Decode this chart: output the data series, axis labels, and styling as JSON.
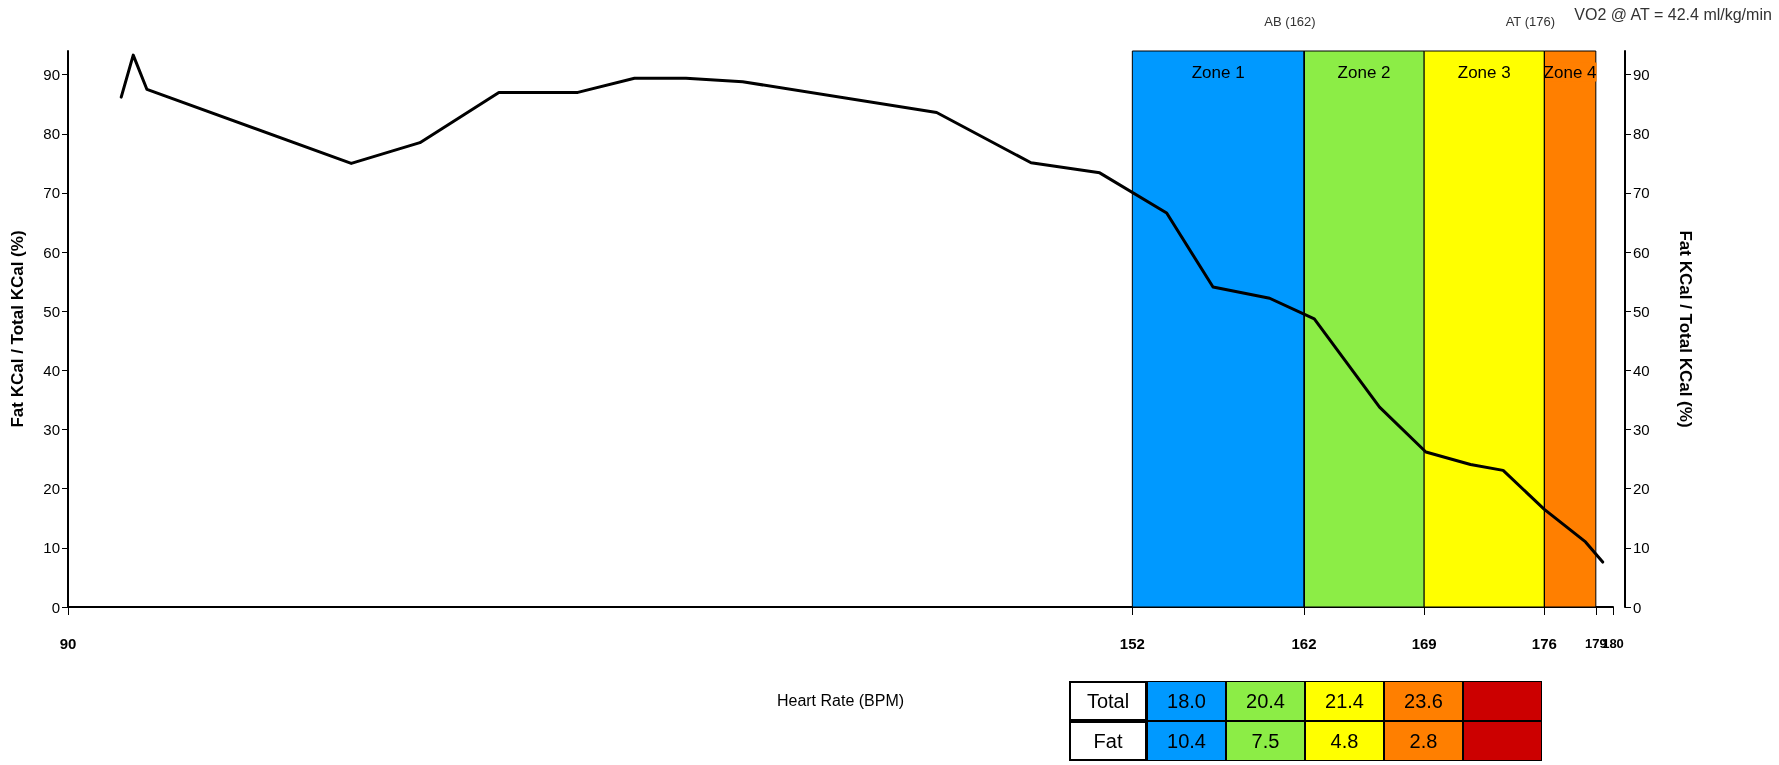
{
  "chart_data": {
    "type": "line",
    "xlabel": "Heart Rate (BPM)",
    "ylabel": "Fat KCal / Total KCal (%)",
    "y2label": "Fat KCal / Total KCal (%)",
    "x": [
      93.1,
      93.8,
      94.6,
      106.5,
      110.5,
      115.1,
      119.7,
      123,
      126,
      129.3,
      140.6,
      146.1,
      150.1,
      154,
      156.7,
      160,
      162.6,
      166.4,
      169.1,
      171.7,
      173.6,
      176,
      178.4,
      179.4
    ],
    "series": [
      {
        "color": "#000000",
        "values": [
          86.2,
          93.3,
          87.5,
          75,
          78.5,
          87,
          87,
          89.4,
          89.4,
          88.8,
          83.6,
          75.1,
          73.4,
          66.6,
          54.1,
          52.2,
          48.7,
          33.8,
          26.2,
          24.1,
          23.1,
          16.5,
          11,
          7.6
        ]
      }
    ],
    "xlim": [
      90,
      180
    ],
    "xticks": [
      90,
      152,
      162,
      169,
      176,
      179,
      180
    ],
    "ylim": [
      0,
      94
    ],
    "yticks": [
      0,
      10,
      20,
      30,
      40,
      50,
      60,
      70,
      80,
      90
    ],
    "y2lim": [
      0,
      94
    ],
    "y2ticks": [
      0,
      10,
      20,
      30,
      40,
      50,
      60,
      70,
      80,
      90
    ],
    "bands": [
      {
        "axis": "x",
        "from": 152,
        "to": 162,
        "label": "Zone 1",
        "color": "#0099ff"
      },
      {
        "axis": "x",
        "from": 162,
        "to": 169,
        "label": "Zone 2",
        "color": "#8ced46"
      },
      {
        "axis": "x",
        "from": 169,
        "to": 176,
        "label": "Zone 3",
        "color": "#ffff00"
      },
      {
        "axis": "x",
        "from": 176,
        "to": 179,
        "label": "Zone 4",
        "color": "#ff7f00"
      }
    ],
    "ref_lines": [
      {
        "axis": "x",
        "value": 162,
        "label": "AB (162)"
      },
      {
        "axis": "x",
        "value": 176,
        "label": "AT (176)"
      }
    ],
    "annotations": [
      "VO2 @ AT = 42.4 ml/kg/min",
      "Total",
      "18.0",
      "20.4",
      "21.4",
      "23.6",
      "Fat",
      "10.4",
      "7.5",
      "4.8",
      "2.8"
    ],
    "grid": false,
    "marker": "none",
    "line_style": "solid"
  }
}
